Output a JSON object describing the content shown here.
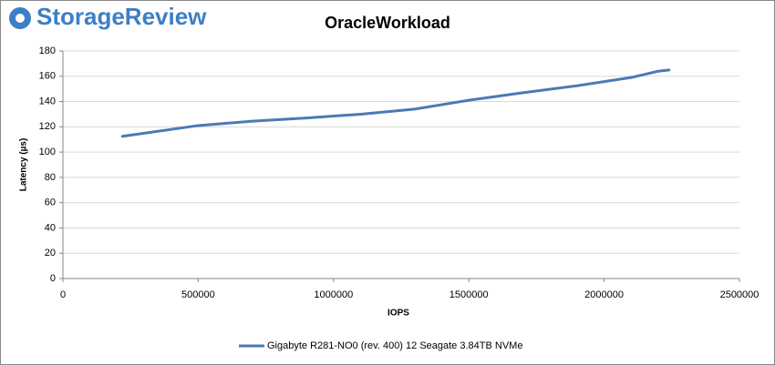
{
  "logo": "StorageReview",
  "chart_data": {
    "type": "line",
    "title": "OracleWorkload",
    "x_label": "IOPS",
    "y_label": "Latency (µs)",
    "x": [
      220000,
      500000,
      700000,
      900000,
      1100000,
      1300000,
      1500000,
      1700000,
      1900000,
      2100000,
      2200000,
      2240000
    ],
    "series": [
      {
        "name": "Gigabyte R281-NO0 (rev. 400) 12 Seagate 3.84TB NVMe",
        "color": "#4a7ab5",
        "values": [
          112.5,
          121,
          124.5,
          127,
          130,
          134,
          141,
          147,
          152.5,
          159,
          164,
          165
        ]
      }
    ],
    "xlim": [
      0,
      2500000
    ],
    "xticks": [
      0,
      500000,
      1000000,
      1500000,
      2000000,
      2500000
    ],
    "ylim": [
      0,
      180
    ],
    "yticks": [
      0,
      20,
      40,
      60,
      80,
      100,
      120,
      140,
      160,
      180
    ],
    "grid": true,
    "legend": "bottom"
  }
}
